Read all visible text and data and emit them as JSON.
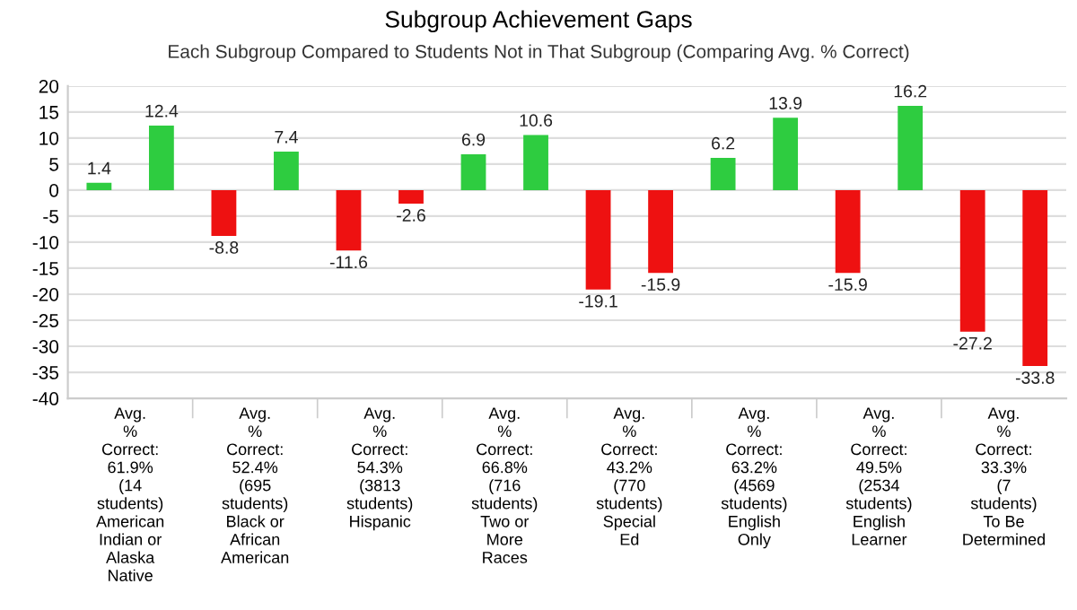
{
  "chart_data": {
    "type": "bar",
    "title": "Subgroup Achievement Gaps",
    "subtitle": "Each Subgroup Compared to Students Not in That Subgroup (Comparing Avg. % Correct)",
    "categories": [
      "Avg.\n%\nCorrect:\n61.9%\n(14\nstudents)\nAmerican\nIndian or\nAlaska\nNative",
      "Avg.\n%\nCorrect:\n52.4%\n(695\nstudents)\nBlack or\nAfrican\nAmerican",
      "Avg.\n%\nCorrect:\n54.3%\n(3813\nstudents)\nHispanic",
      "Avg.\n%\nCorrect:\n66.8%\n(716\nstudents)\nTwo or\nMore\nRaces",
      "Avg.\n%\nCorrect:\n43.2%\n(770\nstudents)\nSpecial\nEd",
      "Avg.\n%\nCorrect:\n63.2%\n(4569\nstudents)\nEnglish\nOnly",
      "Avg.\n%\nCorrect:\n49.5%\n(2534\nstudents)\nEnglish\nLearner",
      "Avg.\n%\nCorrect:\n33.3%\n(7\nstudents)\nTo Be\nDetermined"
    ],
    "series": [
      {
        "values": [
          1.4,
          -8.8,
          -11.6,
          6.9,
          -19.1,
          6.2,
          -15.9,
          -27.2
        ],
        "colors": [
          "#2ecc40",
          "#ee1111",
          "#ee1111",
          "#2ecc40",
          "#ee1111",
          "#2ecc40",
          "#ee1111",
          "#ee1111"
        ]
      },
      {
        "values": [
          12.4,
          7.4,
          -2.6,
          10.6,
          -15.9,
          13.9,
          16.2,
          -33.8
        ],
        "colors": [
          "#2ecc40",
          "#2ecc40",
          "#ee1111",
          "#2ecc40",
          "#ee1111",
          "#2ecc40",
          "#2ecc40",
          "#ee1111"
        ]
      }
    ],
    "ylim": [
      -40,
      20
    ],
    "yticks": [
      -40,
      -35,
      -30,
      -25,
      -20,
      -15,
      -10,
      -5,
      0,
      5,
      10,
      15,
      20
    ],
    "grid": "y",
    "data_labels": true
  }
}
